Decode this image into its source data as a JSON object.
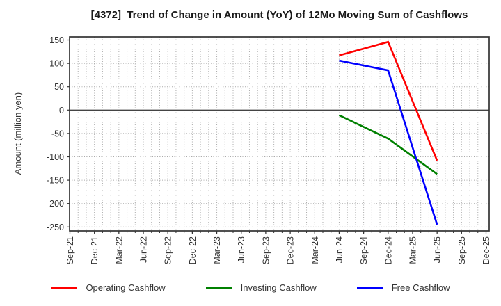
{
  "title": "[4372]  Trend of Change in Amount (YoY) of 12Mo Moving Sum of Cashflows",
  "chart_data": {
    "type": "line",
    "title": "[4372]  Trend of Change in Amount (YoY) of 12Mo Moving Sum of Cashflows",
    "xlabel": "",
    "ylabel": "Amount (million yen)",
    "x_tick_labels": [
      "Sep-21",
      "Dec-21",
      "Mar-22",
      "Jun-22",
      "Sep-22",
      "Dec-22",
      "Mar-23",
      "Jun-23",
      "Sep-23",
      "Dec-23",
      "Mar-24",
      "Jun-24",
      "Sep-24",
      "Dec-24",
      "Mar-25",
      "Jun-25",
      "Sep-25",
      "Dec-25"
    ],
    "y_tick_labels": [
      150,
      100,
      50,
      0,
      -50,
      -100,
      -150,
      -200,
      -250
    ],
    "ylim": [
      -258.5,
      156.7
    ],
    "grid": "on",
    "grid_style": "dotted light-gray; vertical gridline every month, horizontal every 50; zero line solid dark",
    "legend_position": "bottom",
    "series": [
      {
        "name": "Operating Cashflow",
        "color": "#ff0000",
        "points": [
          {
            "x": "Jun-24",
            "y": 117
          },
          {
            "x": "Dec-24",
            "y": 146
          },
          {
            "x": "Jun-25",
            "y": -108
          }
        ]
      },
      {
        "name": "Investing Cashflow",
        "color": "#008000",
        "points": [
          {
            "x": "Jun-24",
            "y": -11
          },
          {
            "x": "Dec-24",
            "y": -61
          },
          {
            "x": "Jun-25",
            "y": -137
          }
        ]
      },
      {
        "name": "Free Cashflow",
        "color": "#0000ff",
        "points": [
          {
            "x": "Jun-24",
            "y": 106
          },
          {
            "x": "Dec-24",
            "y": 85
          },
          {
            "x": "Jun-25",
            "y": -245
          }
        ]
      }
    ],
    "colors": {
      "spine": "#333333",
      "grid": "#aaaaaa",
      "zero_line": "#444444",
      "tick_text": "#333333",
      "title_text": "#1a1a1a"
    }
  }
}
